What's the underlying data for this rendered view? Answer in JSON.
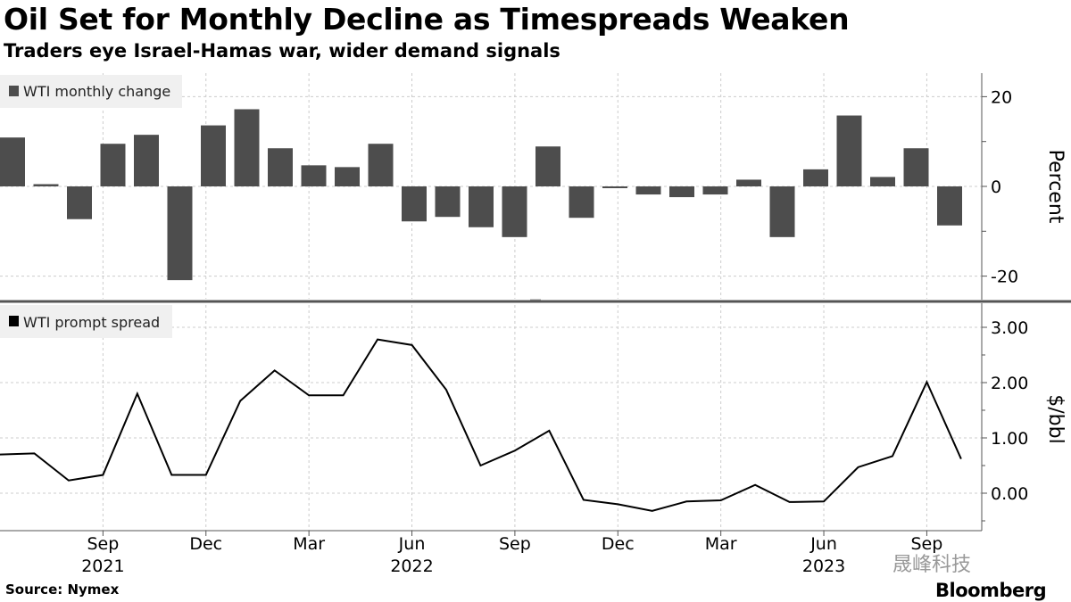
{
  "title": "Oil Set for Monthly Decline as Timespreads Weaken",
  "subtitle": "Traders eye Israel-Hamas war, wider demand signals",
  "source": "Source: Nymex",
  "brand": "Bloomberg",
  "watermark": "晟峰科技",
  "colors": {
    "bar": "#4d4d4d",
    "line": "#000000",
    "grid": "#cccccc",
    "legend_bg": "#f0f0f0"
  },
  "chart_data": [
    {
      "type": "bar",
      "legend": "WTI monthly change",
      "ylabel": "Percent",
      "ylim": [
        -25,
        25
      ],
      "yticks": [
        "20",
        "0",
        "-20"
      ],
      "ytick_values": [
        20,
        0,
        -20
      ],
      "grid": true,
      "legend_placement": "top-left",
      "categories": [
        "Jun 2021",
        "Jul 2021",
        "Aug 2021",
        "Sep 2021",
        "Oct 2021",
        "Nov 2021",
        "Dec 2021",
        "Jan 2022",
        "Feb 2022",
        "Mar 2022",
        "Apr 2022",
        "May 2022",
        "Jun 2022",
        "Jul 2022",
        "Aug 2022",
        "Sep 2022",
        "Oct 2022",
        "Nov 2022",
        "Dec 2022",
        "Jan 2023",
        "Feb 2023",
        "Mar 2023",
        "Apr 2023",
        "May 2023",
        "Jun 2023",
        "Jul 2023",
        "Aug 2023",
        "Sep 2023",
        "Oct 2023"
      ],
      "values": [
        10.9,
        0.5,
        -7.3,
        9.5,
        11.5,
        -20.9,
        13.6,
        17.2,
        8.5,
        4.7,
        4.3,
        9.5,
        -7.8,
        -6.8,
        -9.1,
        -11.3,
        8.9,
        -7.0,
        -0.4,
        -1.8,
        -2.4,
        -1.8,
        1.5,
        -11.3,
        3.8,
        15.8,
        2.1,
        8.5,
        -8.7
      ]
    },
    {
      "type": "line",
      "legend": "WTI prompt spread",
      "ylabel": "$/bbl",
      "ylim": [
        -0.6,
        3.3
      ],
      "yticks": [
        "3.00",
        "2.00",
        "1.00",
        "0.00"
      ],
      "ytick_values": [
        3,
        2,
        1,
        0
      ],
      "grid": true,
      "legend_placement": "top-left",
      "categories": [
        "Jun 2021",
        "Jul 2021",
        "Aug 2021",
        "Sep 2021",
        "Oct 2021",
        "Nov 2021",
        "Dec 2021",
        "Jan 2022",
        "Feb 2022",
        "Mar 2022",
        "Apr 2022",
        "May 2022",
        "Jun 2022",
        "Jul 2022",
        "Aug 2022",
        "Sep 2022",
        "Oct 2022",
        "Nov 2022",
        "Dec 2022",
        "Jan 2023",
        "Feb 2023",
        "Mar 2023",
        "Apr 2023",
        "May 2023",
        "Jun 2023",
        "Jul 2023",
        "Aug 2023",
        "Sep 2023",
        "Oct 2023"
      ],
      "values": [
        0.7,
        0.72,
        0.23,
        0.33,
        1.8,
        0.33,
        0.33,
        1.67,
        2.22,
        1.77,
        1.77,
        2.78,
        2.68,
        1.87,
        0.5,
        0.77,
        1.13,
        -0.12,
        -0.2,
        -0.32,
        -0.15,
        -0.13,
        0.15,
        -0.16,
        -0.15,
        0.47,
        0.67,
        2.01,
        0.62
      ],
      "xticks": [
        {
          "label": "Sep",
          "year": "2021",
          "index": 3
        },
        {
          "label": "Dec",
          "year": "",
          "index": 6
        },
        {
          "label": "Mar",
          "year": "",
          "index": 9
        },
        {
          "label": "Jun",
          "year": "2022",
          "index": 12
        },
        {
          "label": "Sep",
          "year": "",
          "index": 15
        },
        {
          "label": "Dec",
          "year": "",
          "index": 18
        },
        {
          "label": "Mar",
          "year": "",
          "index": 21
        },
        {
          "label": "Jun",
          "year": "2023",
          "index": 24
        },
        {
          "label": "Sep",
          "year": "",
          "index": 27
        }
      ]
    }
  ]
}
